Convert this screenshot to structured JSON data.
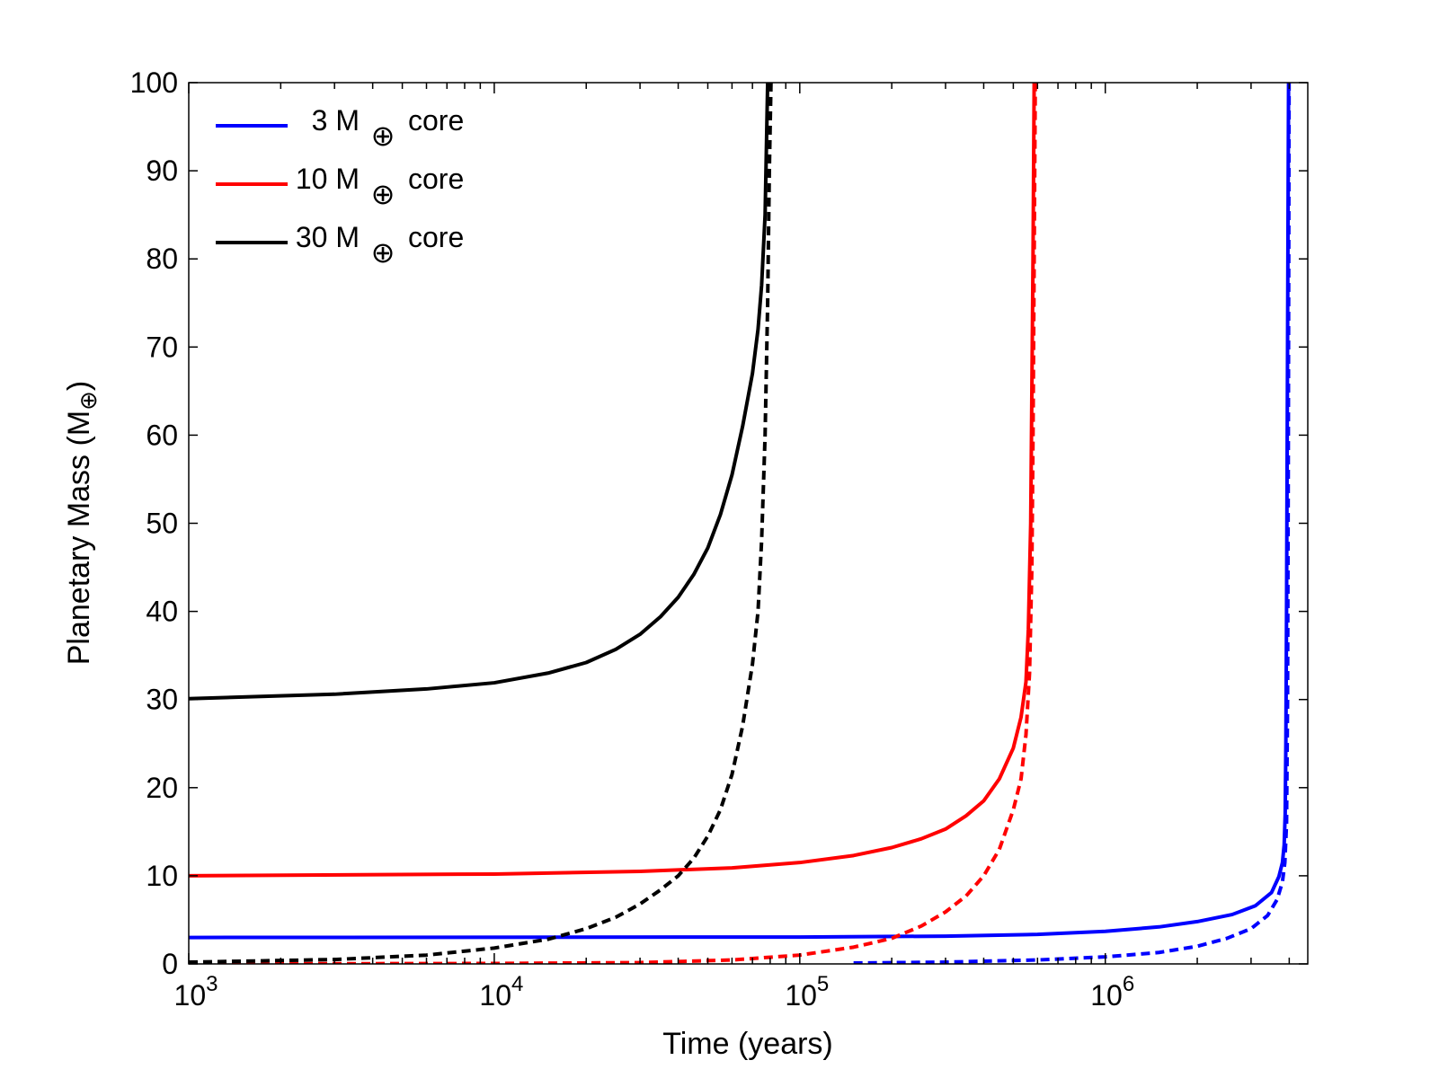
{
  "chart_data": {
    "type": "line",
    "xlabel": "Time (years)",
    "ylabel_main": "Planetary Mass (M",
    "ylabel_sub": "⊕",
    "ylabel_close": ")",
    "x_scale": "log",
    "xlim": [
      1000,
      4600000
    ],
    "ylim": [
      0,
      100
    ],
    "x_ticks": [
      {
        "value": 1000,
        "base": "10",
        "exp": "3"
      },
      {
        "value": 10000,
        "base": "10",
        "exp": "4"
      },
      {
        "value": 100000,
        "base": "10",
        "exp": "5"
      },
      {
        "value": 1000000,
        "base": "10",
        "exp": "6"
      }
    ],
    "y_ticks": [
      0,
      10,
      20,
      30,
      40,
      50,
      60,
      70,
      80,
      90,
      100
    ],
    "legend_position": "top-left",
    "series": [
      {
        "name": "3 M⊕ core",
        "legend_num": "3",
        "legend_unit": "M",
        "legend_sub": "⊕",
        "legend_tail": "core",
        "color": "#0000ff",
        "style": "solid",
        "points": [
          [
            1000,
            3.0
          ],
          [
            100000,
            3.05
          ],
          [
            300000,
            3.15
          ],
          [
            600000,
            3.35
          ],
          [
            1000000,
            3.7
          ],
          [
            1500000,
            4.2
          ],
          [
            2000000,
            4.8
          ],
          [
            2600000,
            5.6
          ],
          [
            3100000,
            6.6
          ],
          [
            3500000,
            8.1
          ],
          [
            3700000,
            9.9
          ],
          [
            3800000,
            11.5
          ],
          [
            3850000,
            13.5
          ],
          [
            3880000,
            17
          ],
          [
            3900000,
            25
          ],
          [
            3920000,
            40
          ],
          [
            3940000,
            60
          ],
          [
            3960000,
            80
          ],
          [
            3980000,
            100
          ]
        ]
      },
      {
        "name": "3 M⊕ core (dashed)",
        "color": "#0000ff",
        "style": "dashed",
        "points": [
          [
            150000,
            0.1
          ],
          [
            300000,
            0.2
          ],
          [
            600000,
            0.45
          ],
          [
            1000000,
            0.8
          ],
          [
            1500000,
            1.3
          ],
          [
            2000000,
            2.0
          ],
          [
            2500000,
            2.9
          ],
          [
            3000000,
            4.0
          ],
          [
            3400000,
            5.5
          ],
          [
            3650000,
            7.3
          ],
          [
            3800000,
            9.3
          ],
          [
            3870000,
            11.5
          ],
          [
            3920000,
            16
          ],
          [
            3950000,
            30
          ],
          [
            3970000,
            55
          ],
          [
            3985000,
            80
          ],
          [
            3995000,
            100
          ]
        ]
      },
      {
        "name": "10 M⊕ core",
        "legend_num": "10",
        "legend_unit": "M",
        "legend_sub": "⊕",
        "legend_tail": "core",
        "color": "#ff0000",
        "style": "solid",
        "points": [
          [
            1000,
            10.0
          ],
          [
            10000,
            10.2
          ],
          [
            30000,
            10.5
          ],
          [
            60000,
            10.9
          ],
          [
            100000,
            11.5
          ],
          [
            150000,
            12.3
          ],
          [
            200000,
            13.2
          ],
          [
            250000,
            14.2
          ],
          [
            300000,
            15.3
          ],
          [
            350000,
            16.8
          ],
          [
            400000,
            18.5
          ],
          [
            450000,
            21
          ],
          [
            500000,
            24.5
          ],
          [
            530000,
            28
          ],
          [
            550000,
            32
          ],
          [
            560000,
            38
          ],
          [
            570000,
            50
          ],
          [
            575000,
            65
          ],
          [
            580000,
            80
          ],
          [
            585000,
            100
          ]
        ]
      },
      {
        "name": "10 M⊕ core (dashed)",
        "color": "#ff0000",
        "style": "dashed",
        "points": [
          [
            1000,
            0.0
          ],
          [
            10000,
            0.05
          ],
          [
            30000,
            0.15
          ],
          [
            60000,
            0.45
          ],
          [
            100000,
            1.0
          ],
          [
            150000,
            1.9
          ],
          [
            200000,
            2.9
          ],
          [
            250000,
            4.3
          ],
          [
            300000,
            5.9
          ],
          [
            350000,
            7.7
          ],
          [
            400000,
            10
          ],
          [
            450000,
            13
          ],
          [
            500000,
            17.5
          ],
          [
            530000,
            21
          ],
          [
            550000,
            26
          ],
          [
            565000,
            33
          ],
          [
            575000,
            45
          ],
          [
            580000,
            60
          ],
          [
            585000,
            80
          ],
          [
            590000,
            100
          ]
        ]
      },
      {
        "name": "30 M⊕ core",
        "legend_num": "30",
        "legend_unit": "M",
        "legend_sub": "⊕",
        "legend_tail": "core",
        "color": "#000000",
        "style": "solid",
        "points": [
          [
            1000,
            30.1
          ],
          [
            3000,
            30.6
          ],
          [
            6000,
            31.2
          ],
          [
            10000,
            31.9
          ],
          [
            15000,
            33.0
          ],
          [
            20000,
            34.2
          ],
          [
            25000,
            35.7
          ],
          [
            30000,
            37.4
          ],
          [
            35000,
            39.4
          ],
          [
            40000,
            41.6
          ],
          [
            45000,
            44.2
          ],
          [
            50000,
            47.2
          ],
          [
            55000,
            51.0
          ],
          [
            60000,
            55.5
          ],
          [
            65000,
            61
          ],
          [
            70000,
            67
          ],
          [
            73000,
            72
          ],
          [
            75000,
            77
          ],
          [
            77000,
            85
          ],
          [
            78500,
            100
          ]
        ]
      },
      {
        "name": "30 M⊕ core (dashed)",
        "color": "#000000",
        "style": "dashed",
        "points": [
          [
            1000,
            0.2
          ],
          [
            3000,
            0.5
          ],
          [
            6000,
            1.0
          ],
          [
            10000,
            1.8
          ],
          [
            15000,
            2.8
          ],
          [
            20000,
            4.0
          ],
          [
            25000,
            5.3
          ],
          [
            30000,
            6.8
          ],
          [
            35000,
            8.4
          ],
          [
            40000,
            10
          ],
          [
            45000,
            12
          ],
          [
            50000,
            14.5
          ],
          [
            55000,
            17.5
          ],
          [
            60000,
            21.5
          ],
          [
            65000,
            27
          ],
          [
            70000,
            34
          ],
          [
            73000,
            40
          ],
          [
            75000,
            48
          ],
          [
            77000,
            60
          ],
          [
            78500,
            75
          ],
          [
            79500,
            90
          ],
          [
            80500,
            100
          ]
        ]
      }
    ]
  }
}
